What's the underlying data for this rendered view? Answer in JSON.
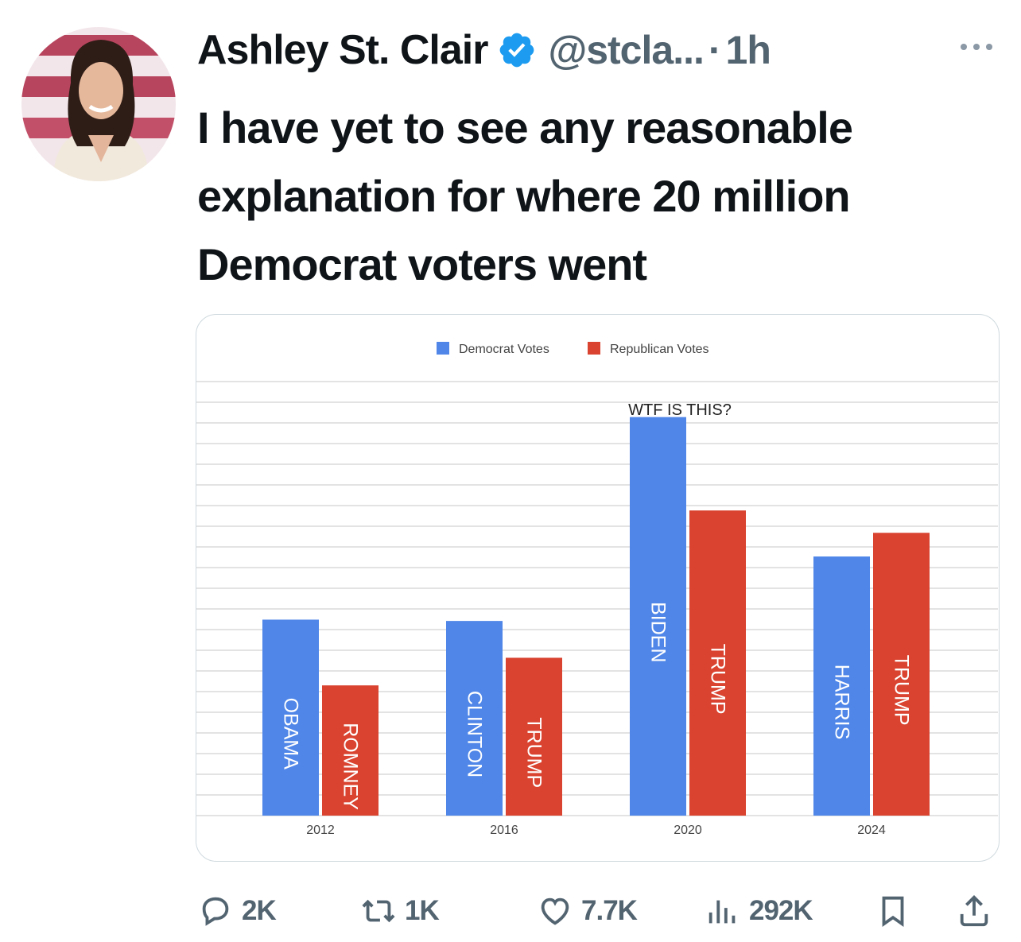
{
  "tweet": {
    "author_name": "Ashley St. Clair",
    "handle": "@stcla...",
    "separator": "·",
    "time": "1h",
    "text": "I have yet to see any reasonable explanation for where 20 million Democrat voters went"
  },
  "actions": {
    "replies": "2K",
    "reposts": "1K",
    "likes": "7.7K",
    "views": "292K"
  },
  "colors": {
    "democrat": "#4f86e8",
    "republican": "#d9432f",
    "verified": "#1d9bf0",
    "secondary_text": "#536471"
  },
  "chart_data": {
    "type": "bar",
    "categories": [
      "2012",
      "2016",
      "2020",
      "2024"
    ],
    "series": [
      {
        "name": "Democrat Votes",
        "values": [
          65.9,
          65.8,
          81.3,
          70.7
        ],
        "bar_labels": [
          "OBAMA",
          "CLINTON",
          "BIDEN",
          "HARRIS"
        ]
      },
      {
        "name": "Republican Votes",
        "values": [
          60.9,
          63.0,
          74.2,
          72.5
        ],
        "bar_labels": [
          "ROMNEY",
          "TRUMP",
          "TRUMP",
          "TRUMP"
        ]
      }
    ],
    "annotation": "WTF IS THIS?",
    "annotation_category": "2020",
    "ylim": [
      51,
      84
    ],
    "legend_position": "top",
    "grid": true
  }
}
